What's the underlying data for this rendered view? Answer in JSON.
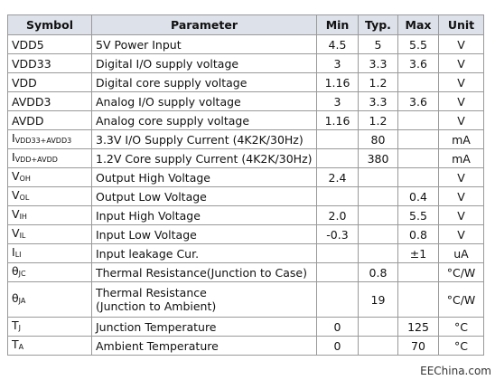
{
  "table": {
    "header": [
      "Symbol",
      "Parameter",
      "Min",
      "Typ.",
      "Max",
      "Unit"
    ],
    "rows": [
      {
        "symbol": "VDD5",
        "parameter": "5V Power Input",
        "min": "4.5",
        "typ": "5",
        "max": "5.5",
        "unit": "V"
      },
      {
        "symbol": "VDD33",
        "parameter": "Digital I/O supply voltage",
        "min": "3",
        "typ": "3.3",
        "max": "3.6",
        "unit": "V"
      },
      {
        "symbol": "VDD",
        "parameter": "Digital core supply voltage",
        "min": "1.16",
        "typ": "1.2",
        "unit": "V"
      },
      {
        "symbol": "AVDD3",
        "parameter": "Analog I/O supply voltage",
        "min": "3",
        "typ": "3.3",
        "max": "3.6",
        "unit": "V"
      },
      {
        "symbol": "AVDD",
        "parameter": "Analog core supply voltage",
        "min": "1.16",
        "typ": "1.2",
        "unit": "V"
      },
      {
        "symbol": "I",
        "symbol_sub": "VDD33+AVDD3",
        "parameter": "3.3V I/O Supply Current (4K2K/30Hz)",
        "typ": "80",
        "unit": "mA"
      },
      {
        "symbol": "I",
        "symbol_sub": "VDD+AVDD",
        "parameter": "1.2V Core supply Current (4K2K/30Hz)",
        "typ": "380",
        "unit": "mA"
      },
      {
        "symbol": "V",
        "symbol_sub": "OH",
        "parameter": "Output High Voltage",
        "min": "2.4",
        "unit": "V"
      },
      {
        "symbol": "V",
        "symbol_sub": "OL",
        "parameter": "Output Low Voltage",
        "max": "0.4",
        "unit": "V"
      },
      {
        "symbol": "V",
        "symbol_sub": "IH",
        "parameter": "Input High Voltage",
        "min": "2.0",
        "max": "5.5",
        "unit": "V"
      },
      {
        "symbol": "V",
        "symbol_sub": "IL",
        "parameter": "Input Low Voltage",
        "min": "-0.3",
        "max": "0.8",
        "unit": "V"
      },
      {
        "symbol": "I",
        "symbol_sub": "LI",
        "parameter": "Input leakage Cur.",
        "max": "±1",
        "unit": "uA"
      },
      {
        "symbol": "θ",
        "symbol_sub": "JC",
        "parameter": "Thermal Resistance(Junction to Case)",
        "typ": "0.8",
        "unit": "°C/W"
      },
      {
        "symbol": "θ",
        "symbol_sub": "JA",
        "parameter": [
          "Thermal Resistance",
          "(Junction to Ambient)"
        ],
        "typ": "19",
        "unit": "°C/W"
      },
      {
        "symbol": "T",
        "symbol_sub": "J",
        "parameter": "Junction Temperature",
        "min": "0",
        "max": "125",
        "unit": "°C"
      },
      {
        "symbol": "T",
        "symbol_sub": "A",
        "parameter": "Ambient Temperature",
        "min": "0",
        "max": "70",
        "unit": "°C"
      }
    ]
  },
  "watermark": "EEChina.com"
}
